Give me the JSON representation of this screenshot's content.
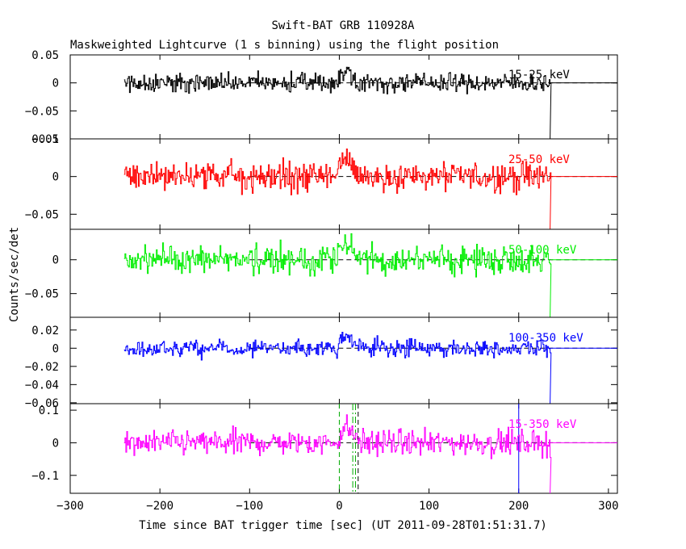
{
  "header": {
    "title": "Swift-BAT GRB 110928A",
    "subtitle": "Maskweighted Lightcurve (1 s binning) using the flight position"
  },
  "axes": {
    "xlabel": "Time since BAT trigger time [sec] (UT 2011-09-28T01:51:31.7)",
    "ylabel": "Counts/sec/det"
  },
  "chart_data": [
    {
      "type": "line",
      "series": [
        {
          "name": "15-25 keV",
          "color": "#000000",
          "noise_amp": 0.022
        }
      ],
      "xlim": [
        -300,
        310
      ],
      "ylim": [
        -0.1,
        0.05
      ],
      "yticks": [
        0.05,
        0,
        -0.05,
        -0.1
      ],
      "yticklabels": [
        "0.05",
        "0",
        "−0.05",
        "−0.1"
      ],
      "data_range": [
        -240,
        235
      ],
      "baseline": 0
    },
    {
      "type": "line",
      "series": [
        {
          "name": "25-50 keV",
          "color": "#ff0000",
          "noise_amp": 0.026
        }
      ],
      "xlim": [
        -300,
        310
      ],
      "ylim": [
        -0.07,
        0.05
      ],
      "yticks": [
        0.05,
        0,
        -0.05
      ],
      "yticklabels": [
        "0.05",
        "0",
        "−0.05"
      ],
      "data_range": [
        -240,
        235
      ],
      "baseline": 0
    },
    {
      "type": "line",
      "series": [
        {
          "name": "50-100 keV",
          "color": "#00ee00",
          "noise_amp": 0.026
        }
      ],
      "xlim": [
        -300,
        310
      ],
      "ylim": [
        -0.085,
        0.045
      ],
      "yticks": [
        0,
        -0.05
      ],
      "yticklabels": [
        "0",
        "−0.05"
      ],
      "data_range": [
        -240,
        235
      ],
      "baseline": 0
    },
    {
      "type": "line",
      "series": [
        {
          "name": "100-350 keV",
          "color": "#0000ff",
          "noise_amp": 0.012
        }
      ],
      "xlim": [
        -300,
        310
      ],
      "ylim": [
        -0.061,
        0.034
      ],
      "yticks": [
        0.02,
        0,
        -0.02,
        -0.04,
        -0.06
      ],
      "yticklabels": [
        "0.02",
        "0",
        "−0.02",
        "−0.04",
        "−0.06"
      ],
      "data_range": [
        -240,
        235
      ],
      "baseline": 0
    },
    {
      "type": "line",
      "series": [
        {
          "name": "15-350 keV",
          "color": "#ff00ff",
          "noise_amp": 0.05
        }
      ],
      "xlim": [
        -300,
        310
      ],
      "ylim": [
        -0.155,
        0.12
      ],
      "yticks": [
        0.1,
        0,
        -0.1
      ],
      "yticklabels": [
        "0.1",
        "0",
        "−0.1"
      ],
      "data_range": [
        -240,
        235
      ],
      "baseline": 0,
      "markers": [
        {
          "x": 0,
          "color": "#00aa00",
          "style": "dashed"
        },
        {
          "x": 15,
          "color": "#00aa00",
          "style": "dashdot"
        },
        {
          "x": 18,
          "color": "#00aa00",
          "style": "dashdot"
        },
        {
          "x": 21,
          "color": "#000000",
          "style": "dashed"
        },
        {
          "x": 200,
          "color": "#0000ff",
          "style": "solid"
        }
      ]
    }
  ],
  "x_axis": {
    "ticks": [
      -300,
      -200,
      -100,
      0,
      100,
      200,
      300
    ],
    "ticklabels": [
      "−300",
      "−200",
      "−100",
      "0",
      "100",
      "200",
      "300"
    ]
  }
}
